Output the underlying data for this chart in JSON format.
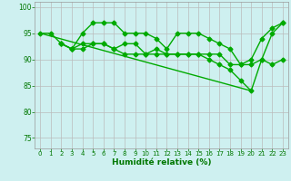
{
  "series": [
    {
      "x": [
        0,
        1,
        2,
        3,
        4,
        5,
        6,
        7,
        8,
        9,
        10,
        11,
        12,
        13,
        14,
        15,
        16,
        17,
        18,
        19,
        20,
        21,
        22,
        23
      ],
      "y": [
        95,
        95,
        93,
        92,
        95,
        97,
        97,
        97,
        95,
        95,
        95,
        94,
        92,
        95,
        95,
        95,
        94,
        93,
        92,
        89,
        90,
        94,
        96,
        97
      ],
      "color": "#00aa00",
      "linewidth": 1.0,
      "marker": "D",
      "markersize": 2.5
    },
    {
      "x": [
        2,
        3,
        4,
        5,
        6,
        7,
        8,
        9,
        10,
        11,
        12,
        13,
        14,
        15,
        16,
        17,
        18,
        19,
        20,
        21,
        22,
        23
      ],
      "y": [
        93,
        92,
        93,
        93,
        93,
        92,
        93,
        93,
        91,
        92,
        91,
        91,
        91,
        91,
        91,
        91,
        89,
        89,
        89,
        90,
        89,
        90
      ],
      "color": "#00aa00",
      "linewidth": 1.0,
      "marker": "D",
      "markersize": 2.5
    },
    {
      "x": [
        2,
        3,
        4,
        5,
        6,
        7,
        8,
        9,
        10,
        11,
        12,
        13,
        14,
        15,
        16,
        17,
        18,
        19,
        20,
        21,
        22,
        23
      ],
      "y": [
        93,
        92,
        92,
        93,
        93,
        92,
        91,
        91,
        91,
        91,
        91,
        91,
        91,
        91,
        90,
        89,
        88,
        86,
        84,
        90,
        95,
        97
      ],
      "color": "#00aa00",
      "linewidth": 1.0,
      "marker": "D",
      "markersize": 2.5
    },
    {
      "x": [
        0,
        20
      ],
      "y": [
        95,
        84
      ],
      "color": "#00aa00",
      "linewidth": 1.0,
      "marker": null,
      "markersize": 0
    }
  ],
  "background_color": "#cef0f0",
  "grid_color": "#bbbbbb",
  "xlabel": "Humidité relative (%)",
  "xlabel_color": "#007700",
  "xlabel_fontsize": 6.5,
  "tick_color": "#007700",
  "yticks": [
    75,
    80,
    85,
    90,
    95,
    100
  ],
  "xticks": [
    0,
    1,
    2,
    3,
    4,
    5,
    6,
    7,
    8,
    9,
    10,
    11,
    12,
    13,
    14,
    15,
    16,
    17,
    18,
    19,
    20,
    21,
    22,
    23
  ],
  "ylim": [
    73,
    101
  ],
  "xlim": [
    -0.5,
    23.5
  ],
  "figwidth": 3.2,
  "figheight": 2.0,
  "dpi": 100
}
